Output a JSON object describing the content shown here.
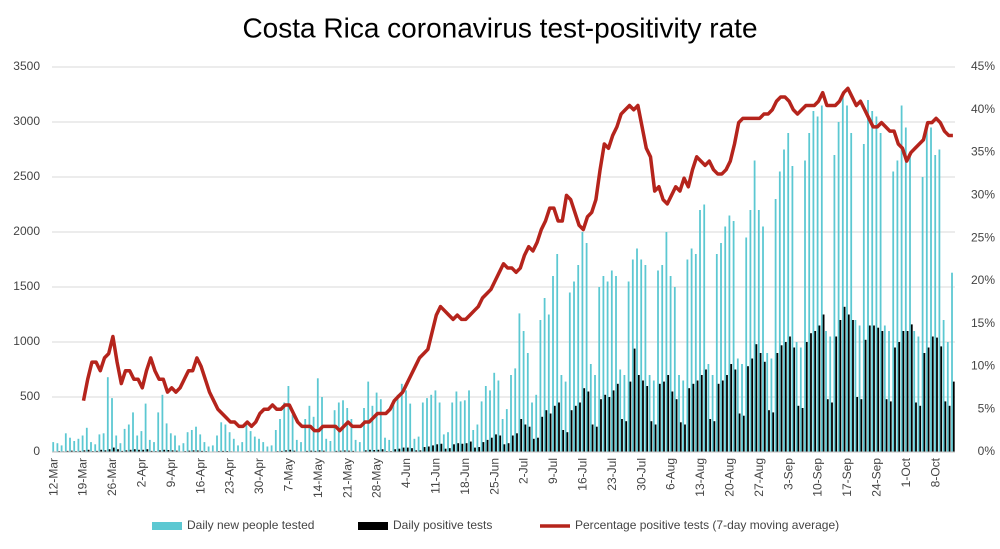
{
  "chart_data": {
    "type": "bar",
    "title": "Costa Rica coronavirus test-positivity rate",
    "categories": [
      "12-Mar",
      null,
      null,
      null,
      null,
      null,
      null,
      "19-Mar",
      null,
      null,
      null,
      null,
      null,
      null,
      "26-Mar",
      null,
      null,
      null,
      null,
      null,
      null,
      "2-Apr",
      null,
      null,
      null,
      null,
      null,
      null,
      "9-Apr",
      null,
      null,
      null,
      null,
      null,
      null,
      "16-Apr",
      null,
      null,
      null,
      null,
      null,
      null,
      "23-Apr",
      null,
      null,
      null,
      null,
      null,
      null,
      "30-Apr",
      null,
      null,
      null,
      null,
      null,
      null,
      "7-May",
      null,
      null,
      null,
      null,
      null,
      null,
      "14-May",
      null,
      null,
      null,
      null,
      null,
      null,
      "21-May",
      null,
      null,
      null,
      null,
      null,
      null,
      "28-May",
      null,
      null,
      null,
      null,
      null,
      null,
      "4-Jun",
      null,
      null,
      null,
      null,
      null,
      null,
      "11-Jun",
      null,
      null,
      null,
      null,
      null,
      null,
      "18-Jun",
      null,
      null,
      null,
      null,
      null,
      null,
      "25-Jun",
      null,
      null,
      null,
      null,
      null,
      null,
      "2-Jul",
      null,
      null,
      null,
      null,
      null,
      null,
      "9-Jul",
      null,
      null,
      null,
      null,
      null,
      null,
      "16-Jul",
      null,
      null,
      null,
      null,
      null,
      null,
      "23-Jul",
      null,
      null,
      null,
      null,
      null,
      null,
      "30-Jul",
      null,
      null,
      null,
      null,
      null,
      null,
      "6-Aug",
      null,
      null,
      null,
      null,
      null,
      null,
      "13-Aug",
      null,
      null,
      null,
      null,
      null,
      null,
      "20-Aug",
      null,
      null,
      null,
      null,
      null,
      null,
      "27-Aug",
      null,
      null,
      null,
      null,
      null,
      null,
      "3-Sep",
      null,
      null,
      null,
      null,
      null,
      null,
      "10-Sep",
      null,
      null,
      null,
      null,
      null,
      null,
      "17-Sep",
      null,
      null,
      null,
      null,
      null,
      null,
      "24-Sep",
      null,
      null,
      null,
      null,
      null,
      null,
      "1-Oct",
      null,
      null,
      null,
      null,
      null,
      null,
      "8-Oct",
      null,
      null,
      null,
      null
    ],
    "series": [
      {
        "name": "Daily new people tested",
        "color": "#5cc8d2",
        "type": "bar",
        "values": [
          90,
          80,
          60,
          170,
          130,
          100,
          120,
          150,
          220,
          90,
          70,
          160,
          170,
          680,
          490,
          150,
          80,
          210,
          250,
          360,
          150,
          190,
          440,
          110,
          90,
          360,
          520,
          260,
          170,
          150,
          60,
          80,
          180,
          200,
          230,
          160,
          90,
          50,
          60,
          150,
          270,
          250,
          180,
          120,
          60,
          90,
          270,
          190,
          140,
          120,
          90,
          50,
          60,
          200,
          300,
          450,
          600,
          340,
          110,
          90,
          300,
          420,
          320,
          670,
          500,
          120,
          100,
          380,
          450,
          470,
          400,
          300,
          110,
          90,
          400,
          640,
          420,
          540,
          480,
          130,
          110,
          430,
          520,
          620,
          560,
          440,
          120,
          140,
          450,
          490,
          520,
          560,
          450,
          160,
          180,
          450,
          550,
          460,
          470,
          560,
          200,
          250,
          460,
          600,
          560,
          720,
          650,
          300,
          390,
          700,
          760,
          1260,
          1100,
          900,
          450,
          520,
          1200,
          1400,
          1250,
          1600,
          1800,
          700,
          640,
          1450,
          1550,
          1700,
          2000,
          1900,
          800,
          700,
          1500,
          1600,
          1550,
          1650,
          1600,
          750,
          700,
          1550,
          1750,
          1850,
          1750,
          1700,
          700,
          650,
          1650,
          1700,
          2000,
          1600,
          1500,
          700,
          650,
          1750,
          1850,
          1800,
          2200,
          2250,
          800,
          700,
          1800,
          1900,
          2050,
          2150,
          2100,
          850,
          800,
          1950,
          2200,
          2650,
          2200,
          2050,
          900,
          850,
          2300,
          2550,
          2750,
          2900,
          2600,
          1000,
          950,
          2650,
          2900,
          3100,
          3050,
          3150,
          1100,
          1050,
          2700,
          3000,
          3250,
          3150,
          2900,
          1200,
          1150,
          2800,
          3200,
          3100,
          3050,
          2900,
          1150,
          1100,
          2550,
          2650,
          3150,
          2950,
          2700,
          1100,
          1050,
          2500,
          2950,
          2950,
          2700,
          2750,
          1200,
          1000,
          1630
        ]
      },
      {
        "name": "Daily positive tests",
        "color": "#000000",
        "type": "bar",
        "values": [
          5,
          8,
          6,
          10,
          12,
          8,
          10,
          15,
          20,
          8,
          10,
          20,
          15,
          25,
          40,
          25,
          10,
          15,
          20,
          25,
          20,
          20,
          25,
          10,
          8,
          15,
          20,
          18,
          15,
          12,
          5,
          8,
          12,
          15,
          14,
          10,
          8,
          4,
          5,
          8,
          10,
          9,
          6,
          5,
          3,
          4,
          8,
          6,
          5,
          5,
          4,
          3,
          3,
          8,
          10,
          15,
          20,
          12,
          5,
          5,
          10,
          12,
          10,
          15,
          12,
          4,
          5,
          10,
          12,
          14,
          12,
          10,
          5,
          4,
          15,
          20,
          18,
          20,
          25,
          8,
          8,
          25,
          30,
          40,
          40,
          35,
          15,
          15,
          45,
          50,
          60,
          70,
          75,
          30,
          35,
          70,
          80,
          75,
          80,
          95,
          40,
          45,
          90,
          110,
          130,
          160,
          150,
          70,
          80,
          150,
          170,
          300,
          250,
          230,
          120,
          130,
          320,
          380,
          350,
          420,
          450,
          200,
          180,
          380,
          420,
          450,
          580,
          550,
          250,
          230,
          480,
          520,
          500,
          560,
          620,
          300,
          280,
          640,
          940,
          700,
          650,
          600,
          280,
          250,
          620,
          640,
          700,
          550,
          480,
          270,
          250,
          580,
          620,
          650,
          700,
          750,
          300,
          280,
          620,
          650,
          700,
          800,
          750,
          350,
          330,
          780,
          850,
          980,
          900,
          820,
          380,
          360,
          900,
          970,
          1000,
          1050,
          950,
          420,
          400,
          1000,
          1080,
          1100,
          1150,
          1250,
          480,
          450,
          1050,
          1200,
          1320,
          1250,
          1200,
          500,
          480,
          1020,
          1150,
          1150,
          1130,
          1100,
          480,
          460,
          950,
          1000,
          1100,
          1100,
          1160,
          450,
          420,
          900,
          950,
          1050,
          1040,
          960,
          460,
          420,
          640
        ]
      },
      {
        "name": "Percentage positive tests (7-day moving average)",
        "color": "#b5241c",
        "type": "line",
        "axis": "y2",
        "values": [
          null,
          null,
          null,
          null,
          null,
          null,
          null,
          6,
          8.5,
          10.5,
          10.5,
          9.5,
          11,
          11.5,
          13.5,
          10.5,
          8,
          9.5,
          9.5,
          8.5,
          8.5,
          7.5,
          9.5,
          11,
          9.5,
          8.5,
          8.5,
          7,
          7.5,
          7,
          7.5,
          8.5,
          9.5,
          9.5,
          11,
          10,
          8.5,
          7,
          6,
          5,
          4.5,
          4,
          3.5,
          3.5,
          3,
          3,
          3.5,
          3,
          3.5,
          4.5,
          5,
          5,
          5.5,
          5,
          5,
          5.5,
          5.5,
          4.5,
          3.5,
          3,
          3,
          3,
          2.5,
          2.5,
          3,
          3,
          3,
          3,
          2.5,
          3,
          3.5,
          3,
          3,
          3,
          3.5,
          3.5,
          4,
          4.5,
          4.5,
          4.5,
          5,
          6,
          6.5,
          7,
          8,
          9,
          10,
          11,
          11.5,
          12,
          14,
          16,
          17,
          16.5,
          16,
          15.5,
          16,
          15.5,
          15.5,
          16,
          16.5,
          17,
          18,
          18.5,
          19,
          20,
          21,
          22,
          21.5,
          21.5,
          21,
          21.5,
          23,
          24,
          23.5,
          24.5,
          26,
          27,
          28.5,
          28.5,
          27,
          27,
          30,
          29.5,
          28,
          26.5,
          26,
          27.5,
          28,
          29.5,
          33,
          36,
          35.5,
          37,
          38,
          39.5,
          40,
          40.5,
          40,
          40.5,
          38,
          35.5,
          34.5,
          30.5,
          31,
          29.5,
          29,
          30,
          31,
          30.5,
          32,
          31,
          33,
          34.5,
          34,
          33.5,
          34,
          33,
          32.5,
          32.5,
          33,
          34,
          36,
          38.5,
          39,
          39,
          39,
          39,
          39,
          39.5,
          39.5,
          40,
          41,
          41.5,
          41.5,
          41,
          40,
          39.5,
          40,
          40.5,
          40.5,
          40.5,
          41,
          42,
          40.5,
          40.5,
          40.5,
          41,
          42,
          42.5,
          41.5,
          40.5,
          41,
          40,
          39,
          38,
          38,
          38.5,
          38,
          37.5,
          37.5,
          36,
          35.5,
          34,
          35,
          35.5,
          36,
          36.5,
          38.5,
          38.5,
          39,
          38.5,
          37.5,
          37,
          37
        ]
      }
    ],
    "ylim": [
      0,
      3500
    ],
    "yticks": [
      0,
      500,
      1000,
      1500,
      2000,
      2500,
      3000,
      3500
    ],
    "y2lim": [
      0,
      45
    ],
    "y2ticks": [
      {
        "value": 0,
        "label": "0%"
      },
      {
        "value": 5,
        "label": "5%"
      },
      {
        "value": 10,
        "label": "10%"
      },
      {
        "value": 15,
        "label": "15%"
      },
      {
        "value": 20,
        "label": "20%"
      },
      {
        "value": 25,
        "label": "25%"
      },
      {
        "value": 30,
        "label": "30%"
      },
      {
        "value": 35,
        "label": "35%"
      },
      {
        "value": 40,
        "label": "40%"
      },
      {
        "value": 45,
        "label": "45%"
      }
    ],
    "grid": true,
    "legend": "bottom"
  }
}
